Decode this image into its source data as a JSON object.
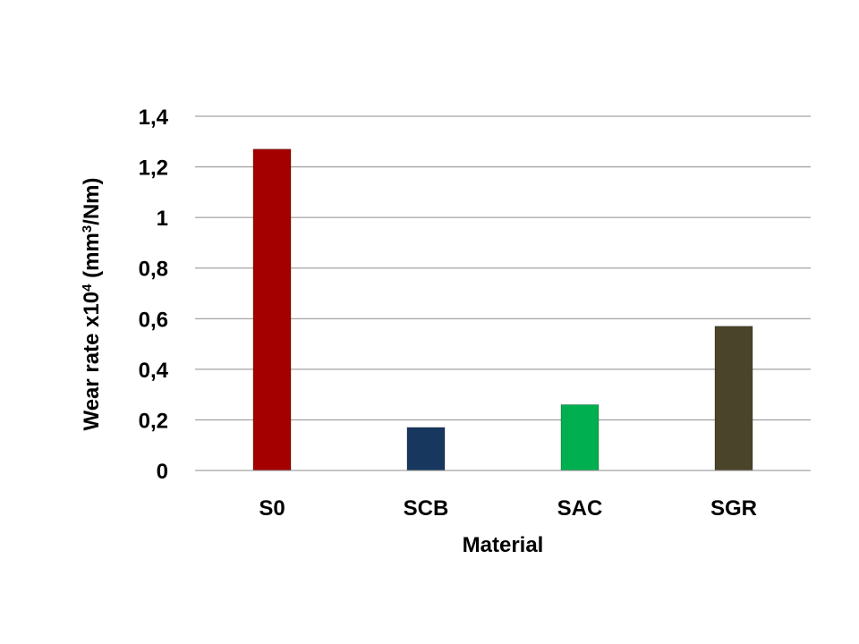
{
  "chart_data": {
    "type": "bar",
    "categories": [
      "S0",
      "SCB",
      "SAC",
      "SGR"
    ],
    "values": [
      1.27,
      0.17,
      0.26,
      0.57
    ],
    "bar_colors": [
      "#a50000",
      "#17375e",
      "#00b050",
      "#4a452a"
    ],
    "xlabel": "Material",
    "ylabel": {
      "prefix": "Wear rate x10",
      "exp": "4",
      "mid": " (mm",
      "unit_exp": "3",
      "suffix": "/Nm)"
    },
    "ylim": [
      0,
      1.4
    ],
    "yticks": [
      0,
      0.2,
      0.4,
      0.6,
      0.8,
      1,
      1.2,
      1.4
    ],
    "ytick_labels": [
      "0",
      "0,2",
      "0,4",
      "0,6",
      "0,8",
      "1",
      "1,2",
      "1,4"
    ],
    "grid": true,
    "legend": "none"
  }
}
